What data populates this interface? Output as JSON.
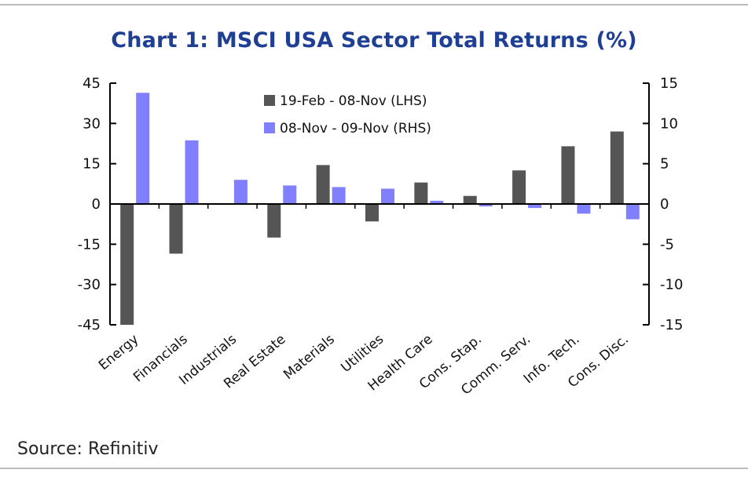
{
  "chart_data": {
    "type": "bar",
    "title": "Chart 1: MSCI USA Sector Total Returns (%)",
    "categories": [
      "Energy",
      "Financials",
      "Industrials",
      "Real Estate",
      "Materials",
      "Utilities",
      "Health Care",
      "Cons. Stap.",
      "Comm. Serv.",
      "Info. Tech.",
      "Cons. Disc."
    ],
    "series": [
      {
        "name": "19-Feb - 08-Nov (LHS)",
        "axis": "left",
        "color": "#555555",
        "values": [
          -45,
          -18.5,
          -0.3,
          -12.5,
          14.5,
          -6.5,
          8,
          3,
          12.5,
          21.5,
          27
        ]
      },
      {
        "name": "08-Nov - 09-Nov (RHS)",
        "axis": "right",
        "color": "#8080ff",
        "values": [
          13.8,
          7.9,
          3,
          2.3,
          2.1,
          1.9,
          0.4,
          -0.3,
          -0.5,
          -1.2,
          -1.9
        ]
      }
    ],
    "y_left": {
      "min": -45,
      "max": 45,
      "ticks": [
        45,
        30,
        15,
        0,
        -15,
        -30,
        -45
      ]
    },
    "y_right": {
      "min": -15,
      "max": 15,
      "ticks": [
        15,
        10,
        5,
        0,
        -5,
        -10,
        -15
      ]
    },
    "legend_position": "top-center",
    "grid": false
  },
  "source": "Source: Refinitiv"
}
